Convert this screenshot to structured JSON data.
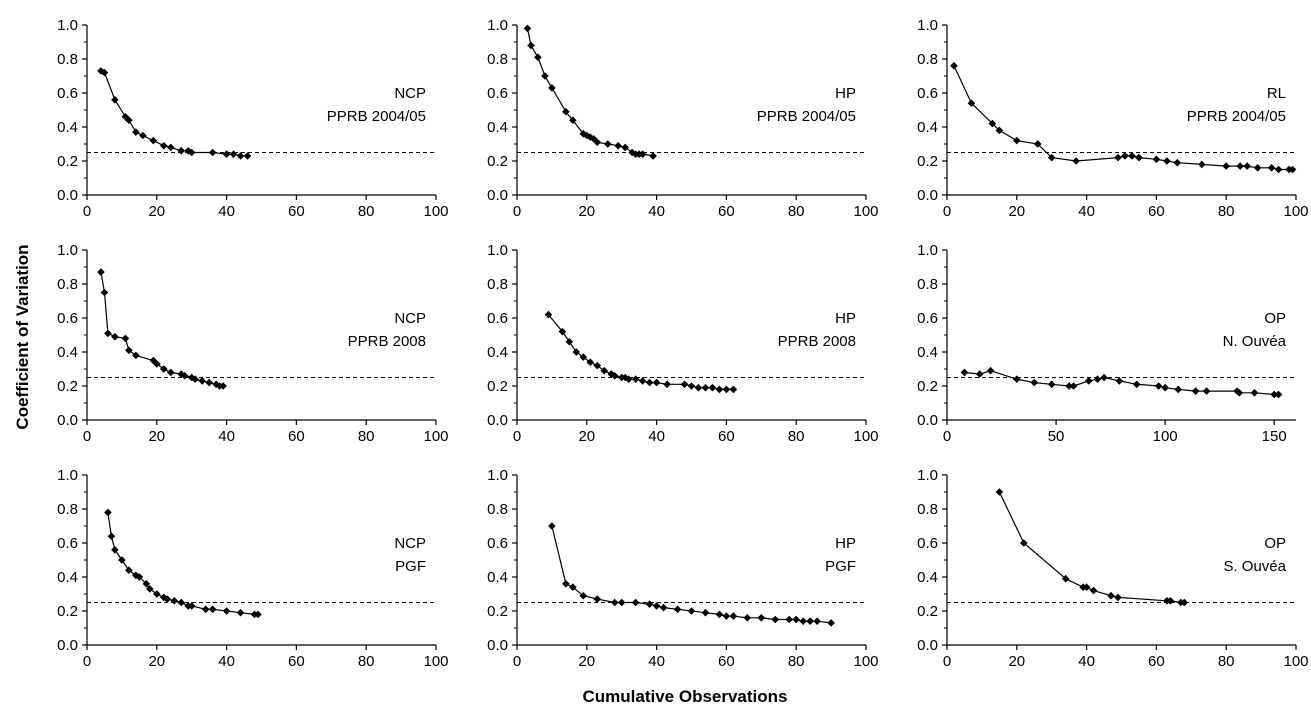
{
  "figure": {
    "ylabel": "Coefficient of Variation",
    "xlabel": "Cumulative Observations"
  },
  "chart_data": [
    {
      "type": "line",
      "label1": "NCP",
      "label2": "PPRB 2004/05",
      "xlim": [
        0,
        100
      ],
      "xticks": [
        0,
        20,
        40,
        60,
        80,
        100
      ],
      "ylim": [
        0,
        1
      ],
      "yticks": [
        0,
        0.2,
        0.4,
        0.6,
        0.8,
        1.0
      ],
      "reference_line": 0.25,
      "x": [
        4,
        5,
        8,
        11,
        12,
        14,
        16,
        19,
        22,
        24,
        27,
        29,
        30,
        36,
        40,
        42,
        44,
        46
      ],
      "y": [
        0.73,
        0.72,
        0.56,
        0.46,
        0.44,
        0.37,
        0.35,
        0.32,
        0.29,
        0.28,
        0.26,
        0.26,
        0.25,
        0.25,
        0.24,
        0.24,
        0.23,
        0.23
      ]
    },
    {
      "type": "line",
      "label1": "HP",
      "label2": "PPRB 2004/05",
      "xlim": [
        0,
        100
      ],
      "xticks": [
        0,
        20,
        40,
        60,
        80,
        100
      ],
      "ylim": [
        0,
        1
      ],
      "yticks": [
        0,
        0.2,
        0.4,
        0.6,
        0.8,
        1.0
      ],
      "reference_line": 0.25,
      "x": [
        3,
        4,
        6,
        8,
        10,
        14,
        16,
        19,
        20,
        21,
        22,
        23,
        26,
        29,
        31,
        33,
        34,
        35,
        36,
        39
      ],
      "y": [
        0.98,
        0.88,
        0.81,
        0.7,
        0.63,
        0.49,
        0.44,
        0.36,
        0.35,
        0.34,
        0.33,
        0.31,
        0.3,
        0.29,
        0.28,
        0.25,
        0.24,
        0.24,
        0.24,
        0.23
      ]
    },
    {
      "type": "line",
      "label1": "RL",
      "label2": "PPRB 2004/05",
      "xlim": [
        0,
        100
      ],
      "xticks": [
        0,
        20,
        40,
        60,
        80,
        100
      ],
      "ylim": [
        0,
        1
      ],
      "yticks": [
        0,
        0.2,
        0.4,
        0.6,
        0.8,
        1.0
      ],
      "reference_line": 0.25,
      "x": [
        2,
        7,
        13,
        15,
        20,
        26,
        30,
        37,
        49,
        51,
        53,
        55,
        60,
        63,
        66,
        73,
        80,
        84,
        86,
        89,
        93,
        95,
        98,
        99
      ],
      "y": [
        0.76,
        0.54,
        0.42,
        0.38,
        0.32,
        0.3,
        0.22,
        0.2,
        0.22,
        0.23,
        0.23,
        0.22,
        0.21,
        0.2,
        0.19,
        0.18,
        0.17,
        0.17,
        0.17,
        0.16,
        0.16,
        0.15,
        0.15,
        0.15
      ]
    },
    {
      "type": "line",
      "label1": "NCP",
      "label2": "PPRB 2008",
      "xlim": [
        0,
        100
      ],
      "xticks": [
        0,
        20,
        40,
        60,
        80,
        100
      ],
      "ylim": [
        0,
        1
      ],
      "yticks": [
        0,
        0.2,
        0.4,
        0.6,
        0.8,
        1.0
      ],
      "reference_line": 0.25,
      "x": [
        4,
        5,
        6,
        8,
        11,
        12,
        14,
        19,
        20,
        22,
        24,
        27,
        28,
        30,
        31,
        33,
        35,
        37,
        38,
        39
      ],
      "y": [
        0.87,
        0.75,
        0.51,
        0.49,
        0.48,
        0.41,
        0.38,
        0.35,
        0.33,
        0.3,
        0.28,
        0.27,
        0.26,
        0.25,
        0.24,
        0.23,
        0.22,
        0.21,
        0.2,
        0.2
      ]
    },
    {
      "type": "line",
      "label1": "HP",
      "label2": "PPRB 2008",
      "xlim": [
        0,
        100
      ],
      "xticks": [
        0,
        20,
        40,
        60,
        80,
        100
      ],
      "ylim": [
        0,
        1
      ],
      "yticks": [
        0,
        0.2,
        0.4,
        0.6,
        0.8,
        1.0
      ],
      "reference_line": 0.25,
      "x": [
        9,
        13,
        15,
        17,
        19,
        21,
        23,
        25,
        27,
        28,
        30,
        31,
        32,
        34,
        36,
        38,
        40,
        43,
        48,
        50,
        52,
        54,
        56,
        58,
        60,
        62
      ],
      "y": [
        0.62,
        0.52,
        0.46,
        0.4,
        0.37,
        0.34,
        0.32,
        0.29,
        0.27,
        0.26,
        0.25,
        0.25,
        0.24,
        0.24,
        0.23,
        0.22,
        0.22,
        0.21,
        0.21,
        0.2,
        0.19,
        0.19,
        0.19,
        0.18,
        0.18,
        0.18
      ]
    },
    {
      "type": "line",
      "label1": "OP",
      "label2": "N. Ouvéa",
      "xlim": [
        0,
        160
      ],
      "xticks": [
        0,
        50,
        100,
        150
      ],
      "ylim": [
        0,
        1
      ],
      "yticks": [
        0,
        0.2,
        0.4,
        0.6,
        0.8,
        1.0
      ],
      "reference_line": 0.25,
      "x": [
        8,
        15,
        20,
        32,
        40,
        48,
        56,
        58,
        65,
        69,
        72,
        79,
        87,
        97,
        100,
        106,
        114,
        119,
        133,
        134,
        141,
        150,
        152
      ],
      "y": [
        0.28,
        0.27,
        0.29,
        0.24,
        0.22,
        0.21,
        0.2,
        0.2,
        0.23,
        0.24,
        0.25,
        0.23,
        0.21,
        0.2,
        0.19,
        0.18,
        0.17,
        0.17,
        0.17,
        0.16,
        0.16,
        0.15,
        0.15
      ]
    },
    {
      "type": "line",
      "label1": "NCP",
      "label2": "PGF",
      "xlim": [
        0,
        100
      ],
      "xticks": [
        0,
        20,
        40,
        60,
        80,
        100
      ],
      "ylim": [
        0,
        1
      ],
      "yticks": [
        0,
        0.2,
        0.4,
        0.6,
        0.8,
        1.0
      ],
      "reference_line": 0.25,
      "x": [
        6,
        7,
        8,
        10,
        12,
        14,
        15,
        17,
        18,
        20,
        22,
        23,
        25,
        27,
        29,
        30,
        34,
        36,
        40,
        44,
        48,
        49
      ],
      "y": [
        0.78,
        0.64,
        0.56,
        0.5,
        0.44,
        0.41,
        0.4,
        0.36,
        0.33,
        0.3,
        0.28,
        0.27,
        0.26,
        0.25,
        0.23,
        0.23,
        0.21,
        0.21,
        0.2,
        0.19,
        0.18,
        0.18
      ]
    },
    {
      "type": "line",
      "label1": "HP",
      "label2": "PGF",
      "xlim": [
        0,
        100
      ],
      "xticks": [
        0,
        20,
        40,
        60,
        80,
        100
      ],
      "ylim": [
        0,
        1
      ],
      "yticks": [
        0,
        0.2,
        0.4,
        0.6,
        0.8,
        1.0
      ],
      "reference_line": 0.25,
      "x": [
        10,
        14,
        16,
        19,
        23,
        28,
        30,
        34,
        38,
        40,
        42,
        46,
        50,
        54,
        58,
        60,
        62,
        66,
        70,
        74,
        78,
        80,
        82,
        84,
        86,
        90
      ],
      "y": [
        0.7,
        0.36,
        0.34,
        0.29,
        0.27,
        0.25,
        0.25,
        0.25,
        0.24,
        0.23,
        0.22,
        0.21,
        0.2,
        0.19,
        0.18,
        0.17,
        0.17,
        0.16,
        0.16,
        0.15,
        0.15,
        0.15,
        0.14,
        0.14,
        0.14,
        0.13
      ]
    },
    {
      "type": "line",
      "label1": "OP",
      "label2": "S. Ouvéa",
      "xlim": [
        0,
        100
      ],
      "xticks": [
        0,
        20,
        40,
        60,
        80,
        100
      ],
      "ylim": [
        0,
        1
      ],
      "yticks": [
        0,
        0.2,
        0.4,
        0.6,
        0.8,
        1.0
      ],
      "reference_line": 0.25,
      "x": [
        15,
        22,
        34,
        39,
        40,
        42,
        47,
        49,
        63,
        64,
        67,
        68
      ],
      "y": [
        0.9,
        0.6,
        0.39,
        0.34,
        0.34,
        0.32,
        0.29,
        0.28,
        0.26,
        0.26,
        0.25,
        0.25
      ]
    }
  ]
}
